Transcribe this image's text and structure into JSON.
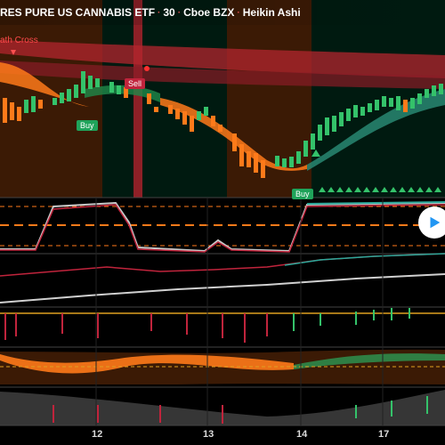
{
  "header": {
    "symbol_title": "RES PURE US CANNABIS ETF",
    "interval": "30",
    "exchange": "Cboe BZX",
    "chart_type": "Heikin Ashi"
  },
  "annotations": {
    "death_cross": "ath Cross",
    "buy1": "Buy",
    "buy2": "Buy",
    "sell": "Sell"
  },
  "x_axis": {
    "labels": [
      "12",
      "13",
      "14",
      "17"
    ]
  },
  "colors": {
    "bull": "#34c26a",
    "bear": "#ff7a1a",
    "bg_orange": "#3b1a05",
    "bg_dark": "#001a10",
    "red_band": "#b3262e",
    "teal": "#2ba89a",
    "white_line": "#d0d0d0"
  },
  "controls": {
    "play_button_icon": "play-icon"
  }
}
